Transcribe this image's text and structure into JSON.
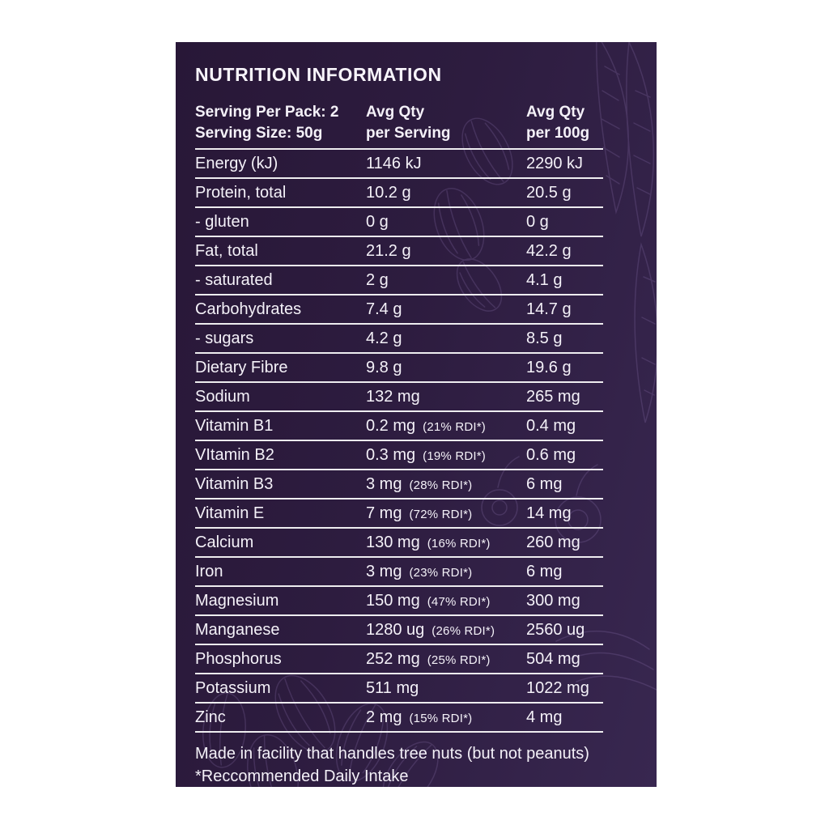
{
  "colors": {
    "page_background": "#ffffff",
    "panel_background": "#2d1c3f",
    "text": "#f4f1f8",
    "rule": "#ffffff",
    "decor_stroke": "#9b7fc0"
  },
  "panel": {
    "title": "NUTRITION INFORMATION",
    "header": {
      "serving_line1": "Serving Per Pack: 2",
      "serving_line2": "Serving Size: 50g",
      "col2_line1": "Avg Qty",
      "col2_line2": "per Serving",
      "col3_line1": "Avg Qty",
      "col3_line2": "per 100g"
    },
    "rows": [
      {
        "label": "Energy (kJ)",
        "per_serving": "1146 kJ",
        "rdi": "",
        "per_100g": "2290 kJ"
      },
      {
        "label": "Protein, total",
        "per_serving": "10.2 g",
        "rdi": "",
        "per_100g": "20.5 g"
      },
      {
        "label": "- gluten",
        "per_serving": "0 g",
        "rdi": "",
        "per_100g": "0 g"
      },
      {
        "label": "Fat, total",
        "per_serving": "21.2 g",
        "rdi": "",
        "per_100g": "42.2 g"
      },
      {
        "label": "- saturated",
        "per_serving": "2 g",
        "rdi": "",
        "per_100g": "4.1 g"
      },
      {
        "label": "Carbohydrates",
        "per_serving": "7.4 g",
        "rdi": "",
        "per_100g": "14.7 g"
      },
      {
        "label": "- sugars",
        "per_serving": "4.2 g",
        "rdi": "",
        "per_100g": "8.5 g"
      },
      {
        "label": "Dietary Fibre",
        "per_serving": "9.8 g",
        "rdi": "",
        "per_100g": "19.6 g"
      },
      {
        "label": "Sodium",
        "per_serving": "132 mg",
        "rdi": "",
        "per_100g": "265 mg"
      },
      {
        "label": "Vitamin B1",
        "per_serving": "0.2 mg",
        "rdi": "(21% RDI*)",
        "per_100g": "0.4 mg"
      },
      {
        "label": "VItamin B2",
        "per_serving": "0.3 mg",
        "rdi": "(19% RDI*)",
        "per_100g": "0.6 mg"
      },
      {
        "label": "Vitamin B3",
        "per_serving": "3 mg",
        "rdi": "(28% RDI*)",
        "per_100g": "6 mg"
      },
      {
        "label": "Vitamin E",
        "per_serving": "7 mg",
        "rdi": "(72% RDI*)",
        "per_100g": "14 mg"
      },
      {
        "label": "Calcium",
        "per_serving": "130 mg",
        "rdi": "(16% RDI*)",
        "per_100g": "260 mg"
      },
      {
        "label": "Iron",
        "per_serving": "3 mg",
        "rdi": "(23% RDI*)",
        "per_100g": "6 mg"
      },
      {
        "label": "Magnesium",
        "per_serving": "150 mg",
        "rdi": "(47% RDI*)",
        "per_100g": "300 mg"
      },
      {
        "label": "Manganese",
        "per_serving": "1280 ug",
        "rdi": "(26% RDI*)",
        "per_100g": "2560 ug"
      },
      {
        "label": "Phosphorus",
        "per_serving": "252 mg",
        "rdi": "(25% RDI*)",
        "per_100g": "504 mg"
      },
      {
        "label": "Potassium",
        "per_serving": "511 mg",
        "rdi": "",
        "per_100g": "1022 mg"
      },
      {
        "label": "Zinc",
        "per_serving": "2 mg",
        "rdi": "(15% RDI*)",
        "per_100g": "4 mg"
      }
    ],
    "footnotes": [
      "Made in facility that handles tree nuts (but not peanuts)",
      "*Reccommended Daily Intake"
    ]
  }
}
